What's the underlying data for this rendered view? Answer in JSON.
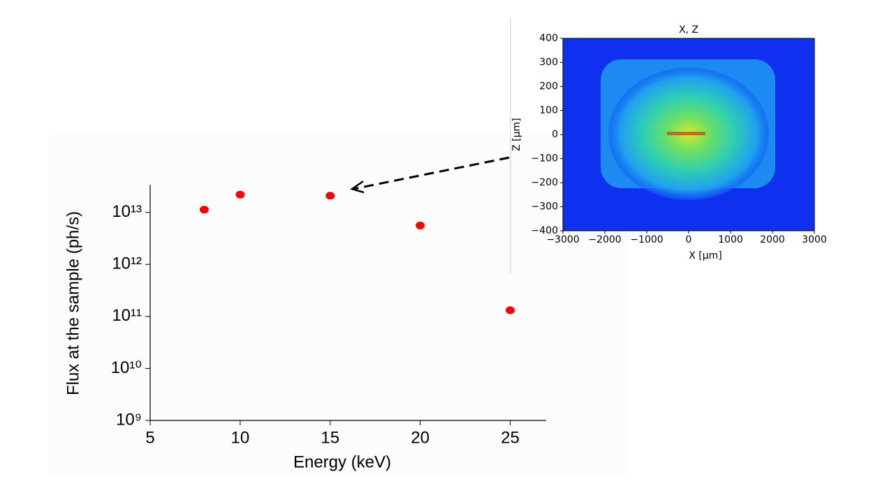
{
  "chart_data": [
    {
      "type": "scatter",
      "x_label": "Energy (keV)",
      "y_label": "Flux at the sample (ph/s)",
      "x": [
        8,
        10,
        15,
        20,
        25
      ],
      "values": [
        11300000000000.0,
        22000000000000.0,
        21000000000000.0,
        5600000000000.0,
        132000000000.0
      ],
      "color": "#ff0000",
      "xlim": [
        5,
        27
      ],
      "xticks": [
        5,
        10,
        15,
        20,
        25
      ],
      "ylim": [
        1000000000.0,
        34000000000000.0
      ],
      "log_y": true,
      "yticks": [
        {
          "value": 1000000000.0,
          "label": "10⁹"
        },
        {
          "value": 10000000000.0,
          "label": "10¹⁰"
        },
        {
          "value": 100000000000.0,
          "label": "10¹¹"
        },
        {
          "value": 1000000000000.0,
          "label": "10¹²"
        },
        {
          "value": 10000000000000.0,
          "label": "10¹³"
        }
      ]
    },
    {
      "type": "heatmap",
      "title": "X, Z",
      "x_label": "X [μm]",
      "y_label": "Z [μm]",
      "xlim": [
        -3000,
        3000
      ],
      "xticks": [
        {
          "value": -3000,
          "label": "−3000"
        },
        {
          "value": -2000,
          "label": "−2000"
        },
        {
          "value": -1000,
          "label": "−1000"
        },
        0,
        1000,
        2000,
        3000
      ],
      "ylim": [
        -400,
        400
      ],
      "yticks": [
        {
          "value": -400,
          "label": "−400"
        },
        {
          "value": -300,
          "label": "−300"
        },
        {
          "value": -200,
          "label": "−200"
        },
        {
          "value": -100,
          "label": "−100"
        },
        0,
        100,
        200,
        300,
        400
      ]
    }
  ]
}
